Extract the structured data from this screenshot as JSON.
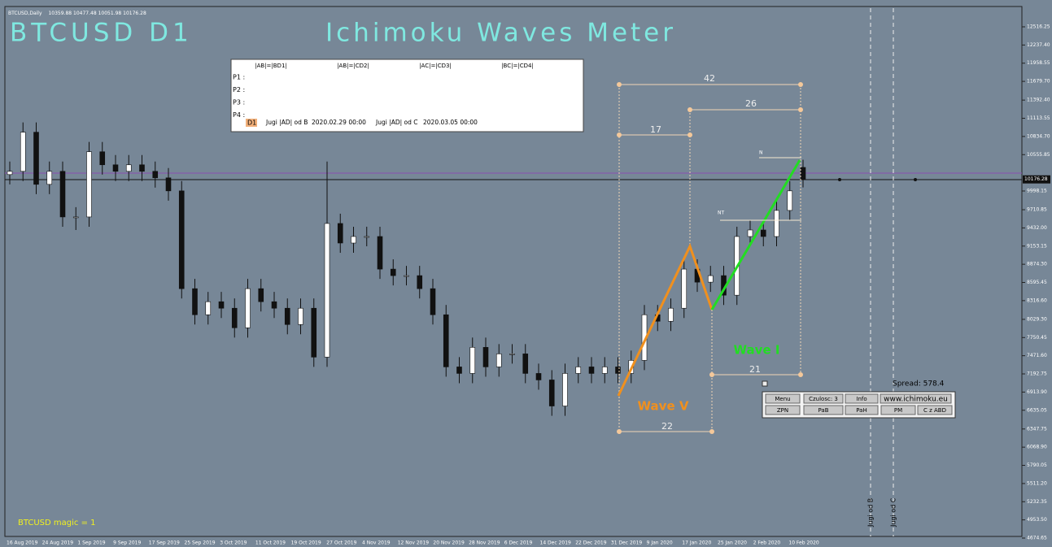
{
  "header": {
    "symbol": "BTCUSD,Daily"
  },
  "title": "BTCUSD D1",
  "indicator": "Ichimoku Waves Meter",
  "chart_data": {
    "type": "candlestick",
    "candles": [
      [
        10250,
        10450,
        10100,
        10300
      ],
      [
        10300,
        11050,
        10150,
        10900
      ],
      [
        10900,
        11050,
        9950,
        10100
      ],
      [
        10100,
        10450,
        9950,
        10300
      ],
      [
        10300,
        10450,
        9450,
        9600
      ],
      [
        9600,
        9750,
        9400,
        9600
      ],
      [
        9600,
        10750,
        9450,
        10600
      ],
      [
        10600,
        10750,
        10250,
        10400
      ],
      [
        10400,
        10550,
        10150,
        10300
      ],
      [
        10300,
        10550,
        10150,
        10400
      ],
      [
        10400,
        10550,
        10150,
        10300
      ],
      [
        10300,
        10450,
        10050,
        10200
      ],
      [
        10200,
        10350,
        9850,
        10000
      ],
      [
        10000,
        10150,
        8350,
        8500
      ],
      [
        8500,
        8650,
        7950,
        8100
      ],
      [
        8100,
        8450,
        7950,
        8300
      ],
      [
        8300,
        8450,
        8050,
        8200
      ],
      [
        8200,
        8350,
        7750,
        7900
      ],
      [
        7900,
        8650,
        7750,
        8500
      ],
      [
        8500,
        8650,
        8150,
        8300
      ],
      [
        8300,
        8450,
        8050,
        8200
      ],
      [
        8200,
        8350,
        7800,
        7950
      ],
      [
        7950,
        8350,
        7800,
        8200
      ],
      [
        8200,
        8350,
        7300,
        7450
      ],
      [
        7450,
        10450,
        7300,
        9500
      ],
      [
        9500,
        9650,
        9050,
        9200
      ],
      [
        9200,
        9450,
        9050,
        9300
      ],
      [
        9300,
        9450,
        9150,
        9300
      ],
      [
        9300,
        9450,
        8650,
        8800
      ],
      [
        8800,
        8950,
        8550,
        8700
      ],
      [
        8700,
        8850,
        8550,
        8700
      ],
      [
        8700,
        8850,
        8350,
        8500
      ],
      [
        8500,
        8650,
        7950,
        8100
      ],
      [
        8100,
        8250,
        7150,
        7300
      ],
      [
        7300,
        7450,
        7050,
        7200
      ],
      [
        7200,
        7750,
        7050,
        7600
      ],
      [
        7600,
        7750,
        7150,
        7300
      ],
      [
        7300,
        7650,
        7150,
        7500
      ],
      [
        7500,
        7650,
        7350,
        7500
      ],
      [
        7500,
        7650,
        7050,
        7200
      ],
      [
        7200,
        7350,
        6950,
        7100
      ],
      [
        7100,
        7250,
        6550,
        6700
      ],
      [
        6700,
        7350,
        6550,
        7200
      ],
      [
        7200,
        7450,
        7050,
        7300
      ],
      [
        7300,
        7450,
        7050,
        7200
      ],
      [
        7200,
        7450,
        7050,
        7300
      ],
      [
        7300,
        7450,
        7050,
        7200
      ],
      [
        7200,
        7550,
        7050,
        7400
      ],
      [
        7400,
        8250,
        7250,
        8100
      ],
      [
        8100,
        8250,
        7850,
        8000
      ],
      [
        8000,
        8350,
        7850,
        8200
      ],
      [
        8200,
        8950,
        8050,
        8800
      ],
      [
        8800,
        8950,
        8450,
        8600
      ],
      [
        8600,
        8850,
        8450,
        8700
      ],
      [
        8700,
        8850,
        8250,
        8400
      ],
      [
        8400,
        9450,
        8250,
        9300
      ],
      [
        9300,
        9550,
        9150,
        9400
      ],
      [
        9400,
        9550,
        9150,
        9300
      ],
      [
        9300,
        9850,
        9150,
        9700
      ],
      [
        9700,
        10150,
        9550,
        10000
      ],
      [
        10359.88,
        10477.48,
        10051.98,
        10176.28
      ]
    ],
    "dates": [
      "16 Aug 2019",
      "24 Aug 2019",
      "1 Sep 2019",
      "9 Sep 2019",
      "17 Sep 2019",
      "25 Sep 2019",
      "3 Oct 2019",
      "11 Oct 2019",
      "19 Oct 2019",
      "27 Oct 2019",
      "4 Nov 2019",
      "12 Nov 2019",
      "20 Nov 2019",
      "28 Nov 2019",
      "6 Dec 2019",
      "14 Dec 2019",
      "22 Dec 2019",
      "31 Dec 2019",
      "9 Jan 2020",
      "17 Jan 2020",
      "25 Jan 2020",
      "2 Feb 2020",
      "10 Feb 2020"
    ],
    "ylim": [
      4674.65,
      12516.25
    ],
    "yticks": [
      12516.25,
      {
        "value": 12237.4,
        "label": "12237.40"
      },
      11958.55,
      {
        "value": 11679.7,
        "label": "11679.70"
      },
      {
        "value": 11392.4,
        "label": "11392.40"
      },
      11113.55,
      {
        "value": 10834.7,
        "label": "10834.70"
      },
      10555.85,
      9998.15,
      9710.85,
      {
        "value": 9432,
        "label": "9432.00"
      },
      9153.15,
      {
        "value": 8874.3,
        "label": "8874.30"
      },
      8595.45,
      {
        "value": 8316.6,
        "label": "8316.60"
      },
      {
        "value": 8029.3,
        "label": "8029.30"
      },
      7750.45,
      {
        "value": 7471.6,
        "label": "7471.60"
      },
      7192.75,
      {
        "value": 6913.9,
        "label": "6913.90"
      },
      6635.05,
      6347.75,
      {
        "value": 6068.9,
        "label": "6068.90"
      },
      5790.05,
      {
        "value": 5511.2,
        "label": "5511.20"
      },
      5232.35,
      {
        "value": 4953.5,
        "label": "4953.50"
      },
      4674.65
    ]
  },
  "measures": [
    "42",
    "26",
    "17",
    "21",
    "22"
  ],
  "waves": [
    "Wave V",
    "Wave I"
  ],
  "levels": [
    "N",
    "NT"
  ],
  "vlines": [
    "Jugi od B",
    "Jugi od C"
  ],
  "panel": {
    "headers": [
      "|AB|=|BD1|",
      "|AB|=|CD2|",
      "|AC|=|CD3|",
      "|BC|=|CD4|"
    ],
    "rows": [
      "P1 :",
      "P2 :",
      "P3 :",
      "P4 :"
    ],
    "tf": "D1",
    "jugi_b": "Jugi |AD| od B",
    "date_b": "2020.02.29 00:00",
    "jugi_c": "Jugi |AD| od C",
    "date_c": "2020.03.05 00:00"
  },
  "buttons": [
    [
      "Menu",
      "Czulosc: 3",
      "Info",
      "www.ichimoku.eu"
    ],
    [
      "ZPN",
      "PaB",
      "PaH",
      "PM",
      "C z ABD"
    ]
  ],
  "spread": "Spread: 578.4",
  "magic": "BTCUSD  magic = 1"
}
